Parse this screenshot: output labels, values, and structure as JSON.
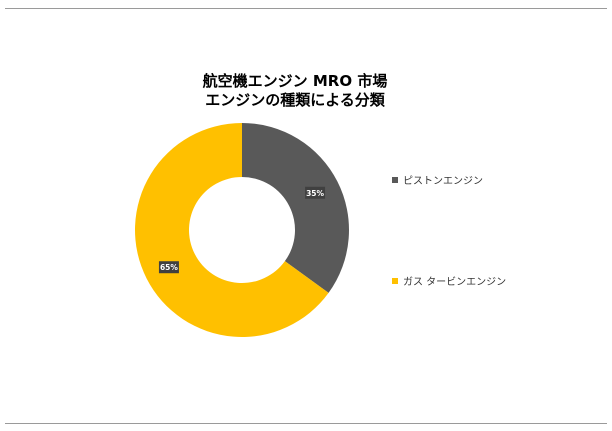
{
  "chart_data": {
    "type": "pie",
    "style": "donut",
    "title_lines": [
      "航空機エンジン MRO 市場",
      "エンジンの種類による分類"
    ],
    "slices": [
      {
        "name": "ピストンエンジン",
        "value": 35,
        "label": "35%",
        "color": "#595959"
      },
      {
        "name": "ガス タービンエンジン",
        "value": 65,
        "label": "65%",
        "color": "#FFC000"
      }
    ],
    "legend_position": "right",
    "start_angle": "top, clockwise"
  }
}
